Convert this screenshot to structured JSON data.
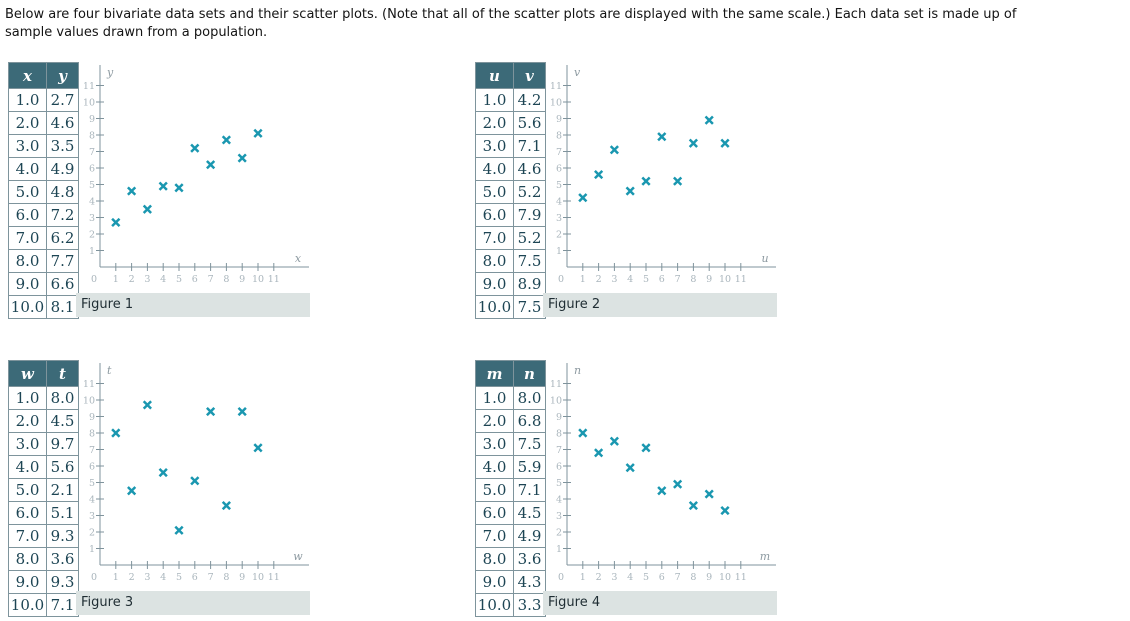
{
  "intro_text": "Below are four bivariate data sets and their scatter plots. (Note that all of the scatter plots are displayed with the same scale.) Each data set is made up of\nsample values drawn from a population.",
  "colors": {
    "marker": "#1a97b0",
    "table_header_bg": "#3c6a78",
    "table_header_text": "#ffffff",
    "table_text": "#1d4554",
    "table_border": "#7e949c",
    "caption_bg": "#dce3e2",
    "caption_text": "#1f2d33",
    "axis_line": "#7f939c",
    "tick_label": "#a9b5bc",
    "axis_letter": "#8d9aa1"
  },
  "chart_data": [
    {
      "type": "scatter",
      "title": "Figure 1",
      "xlabel": "x",
      "ylabel": "y",
      "x": [
        1.0,
        2.0,
        3.0,
        4.0,
        5.0,
        6.0,
        7.0,
        8.0,
        9.0,
        10.0
      ],
      "y": [
        2.7,
        4.6,
        3.5,
        4.9,
        4.8,
        7.2,
        6.2,
        7.7,
        6.6,
        8.1
      ],
      "xlim": [
        0,
        11
      ],
      "ylim": [
        0,
        11
      ],
      "x_ticks": [
        1,
        2,
        3,
        4,
        5,
        6,
        7,
        8,
        9,
        10,
        11
      ],
      "y_ticks": [
        1,
        2,
        3,
        4,
        5,
        6,
        7,
        8,
        9,
        10,
        11
      ],
      "origin_label": "0",
      "grid": false,
      "legend": null,
      "marker": "x-cross"
    },
    {
      "type": "scatter",
      "title": "Figure 2",
      "xlabel": "u",
      "ylabel": "v",
      "x": [
        1.0,
        2.0,
        3.0,
        4.0,
        5.0,
        6.0,
        7.0,
        8.0,
        9.0,
        10.0
      ],
      "y": [
        4.2,
        5.6,
        7.1,
        4.6,
        5.2,
        7.9,
        5.2,
        7.5,
        8.9,
        7.5
      ],
      "xlim": [
        0,
        11
      ],
      "ylim": [
        0,
        11
      ],
      "x_ticks": [
        1,
        2,
        3,
        4,
        5,
        6,
        7,
        8,
        9,
        10,
        11
      ],
      "y_ticks": [
        1,
        2,
        3,
        4,
        5,
        6,
        7,
        8,
        9,
        10,
        11
      ],
      "origin_label": "0",
      "grid": false,
      "legend": null,
      "marker": "x-cross"
    },
    {
      "type": "scatter",
      "title": "Figure 3",
      "xlabel": "w",
      "ylabel": "t",
      "x": [
        1.0,
        2.0,
        3.0,
        4.0,
        5.0,
        6.0,
        7.0,
        8.0,
        9.0,
        10.0
      ],
      "y": [
        8.0,
        4.5,
        9.7,
        5.6,
        2.1,
        5.1,
        9.3,
        3.6,
        9.3,
        7.1
      ],
      "xlim": [
        0,
        11
      ],
      "ylim": [
        0,
        11
      ],
      "x_ticks": [
        1,
        2,
        3,
        4,
        5,
        6,
        7,
        8,
        9,
        10,
        11
      ],
      "y_ticks": [
        1,
        2,
        3,
        4,
        5,
        6,
        7,
        8,
        9,
        10,
        11
      ],
      "origin_label": "0",
      "grid": false,
      "legend": null,
      "marker": "x-cross"
    },
    {
      "type": "scatter",
      "title": "Figure 4",
      "xlabel": "m",
      "ylabel": "n",
      "x": [
        1.0,
        2.0,
        3.0,
        4.0,
        5.0,
        6.0,
        7.0,
        8.0,
        9.0,
        10.0
      ],
      "y": [
        8.0,
        6.8,
        7.5,
        5.9,
        7.1,
        4.5,
        4.9,
        3.6,
        4.3,
        3.3
      ],
      "xlim": [
        0,
        11
      ],
      "ylim": [
        0,
        11
      ],
      "x_ticks": [
        1,
        2,
        3,
        4,
        5,
        6,
        7,
        8,
        9,
        10,
        11
      ],
      "y_ticks": [
        1,
        2,
        3,
        4,
        5,
        6,
        7,
        8,
        9,
        10,
        11
      ],
      "origin_label": "0",
      "grid": false,
      "legend": null,
      "marker": "x-cross"
    }
  ]
}
